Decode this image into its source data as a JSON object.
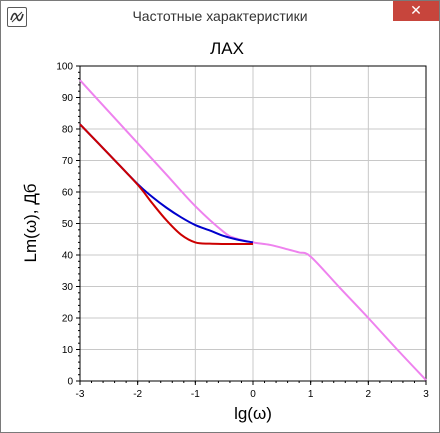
{
  "window": {
    "title": "Частотные характеристики",
    "close_glyph": "✕",
    "icon": "app-logo-icon"
  },
  "chart_data": {
    "type": "line",
    "title": "ЛАХ",
    "xlabel": "lg(ω)",
    "ylabel": "Lm(ω), Дб",
    "xlim": [
      -3,
      3
    ],
    "ylim": [
      0,
      100
    ],
    "x_ticks": [
      "-3",
      "-2",
      "-1",
      "0",
      "1",
      "2",
      "3"
    ],
    "y_ticks": [
      "0",
      "10",
      "20",
      "30",
      "40",
      "50",
      "60",
      "70",
      "80",
      "90",
      "100"
    ],
    "grid": true,
    "legend": "none",
    "series": [
      {
        "color": "#ee82ee",
        "x": [
          -3,
          -2.5,
          -2,
          -1.5,
          -1,
          -0.5,
          -0.3,
          0,
          0.3,
          0.6,
          0.8,
          1,
          1.5,
          2,
          2.5,
          3
        ],
        "y": [
          95.5,
          85.5,
          75.5,
          65.5,
          55.5,
          47.2,
          45.3,
          44.0,
          43.2,
          41.8,
          40.8,
          39.5,
          29.7,
          20.0,
          10.0,
          0.3
        ]
      },
      {
        "color": "#0000cc",
        "x": [
          -3,
          -2.5,
          -2,
          -1.75,
          -1.5,
          -1.25,
          -1,
          -0.75,
          -0.5,
          -0.25,
          0
        ],
        "y": [
          81.5,
          72.0,
          62.5,
          58.5,
          55.0,
          52.0,
          49.5,
          47.8,
          46.0,
          44.8,
          44.0
        ]
      },
      {
        "color": "#cc0000",
        "x": [
          -3,
          -2.5,
          -2,
          -1.75,
          -1.5,
          -1.25,
          -1,
          -0.75,
          -0.5,
          -0.25,
          0
        ],
        "y": [
          81.5,
          72.0,
          62.3,
          56.5,
          51.0,
          46.5,
          44.0,
          43.6,
          43.5,
          43.5,
          43.5
        ]
      }
    ]
  }
}
